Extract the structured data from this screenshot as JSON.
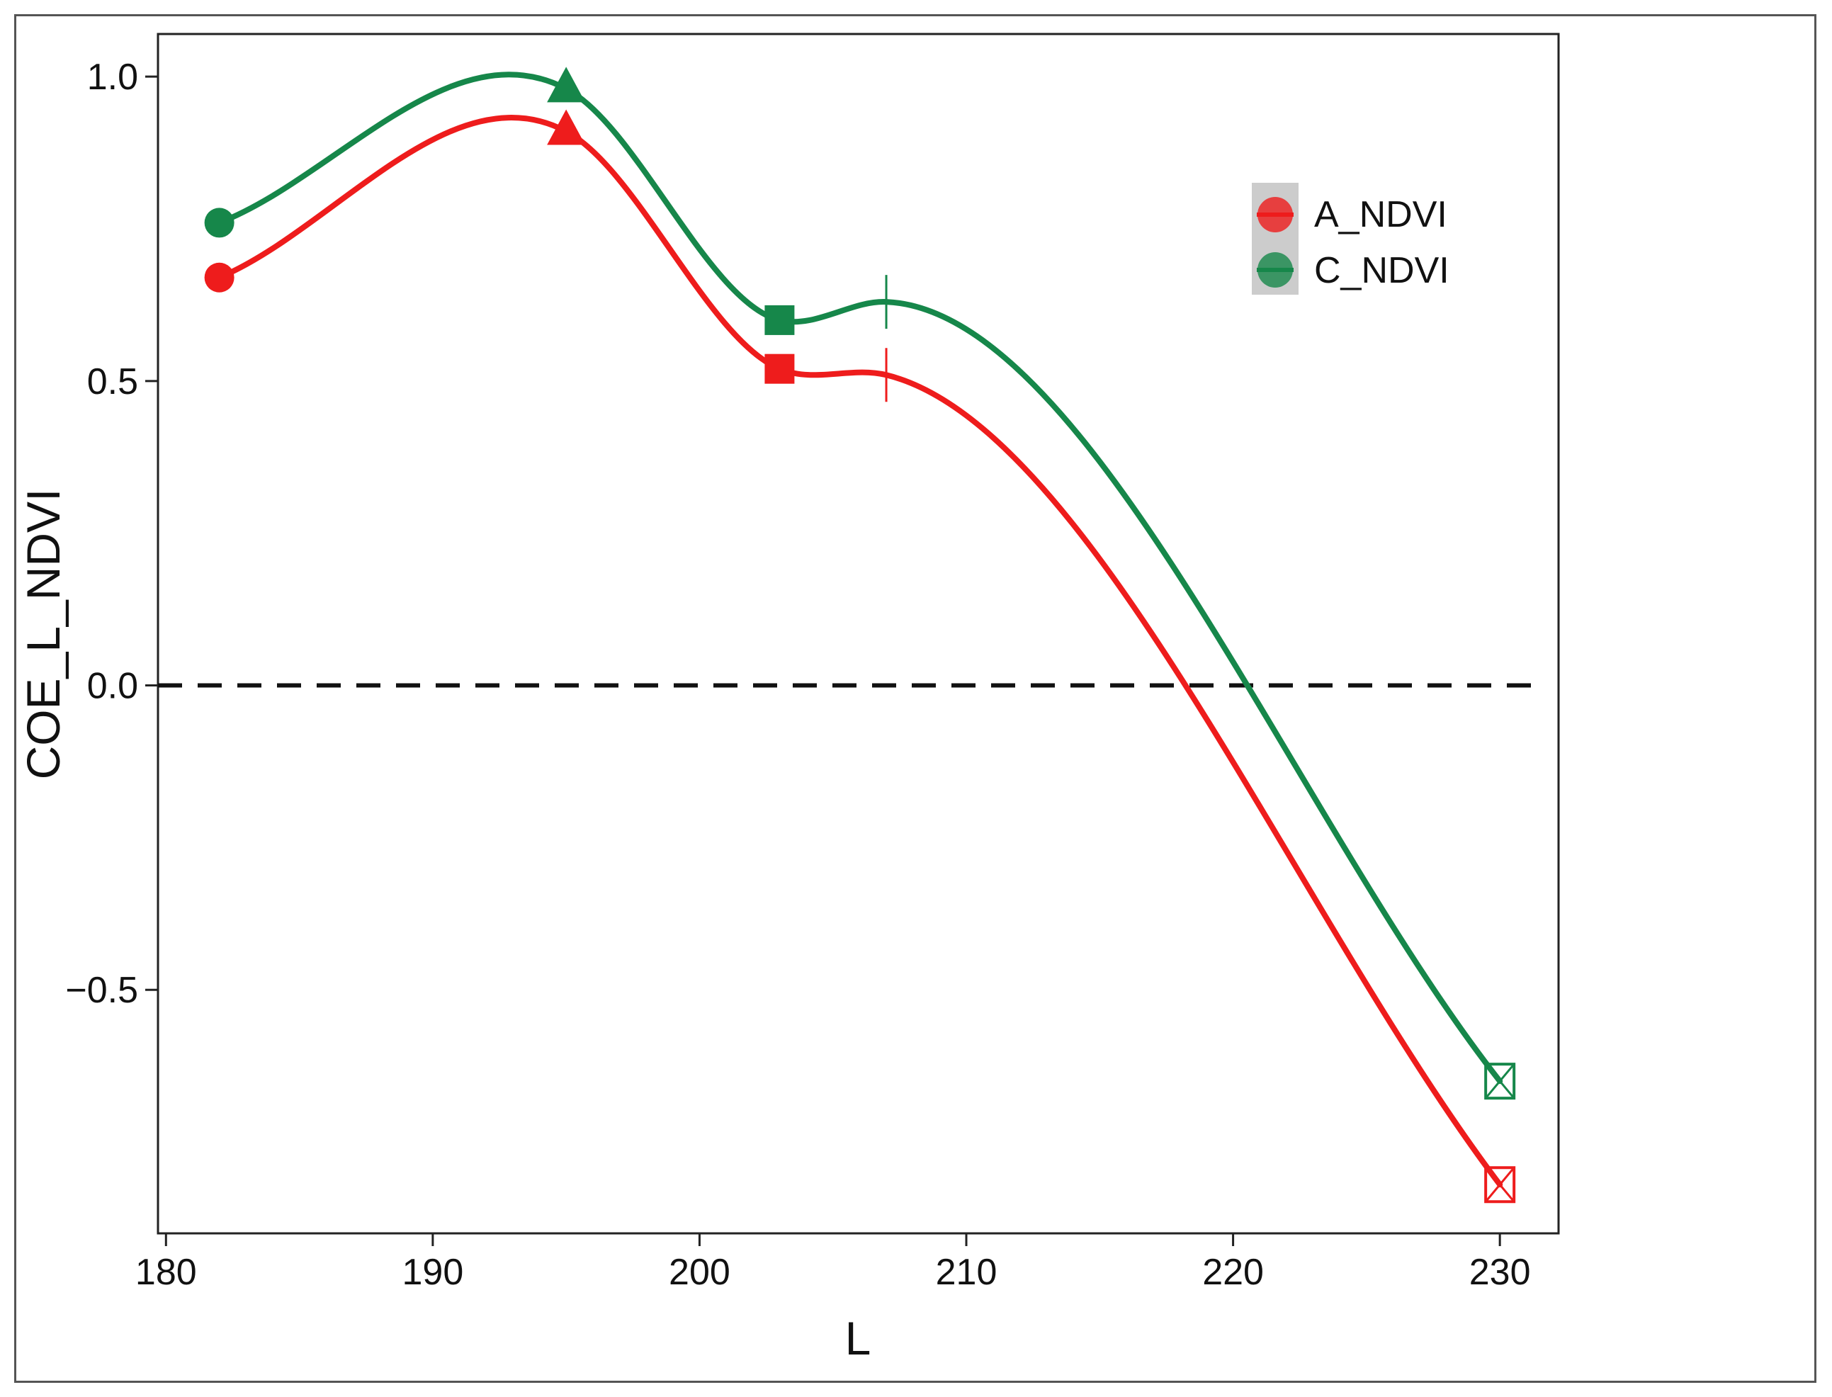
{
  "chart_data": {
    "type": "line",
    "title": "",
    "xlabel": "L",
    "ylabel": "COE_L_NDVI",
    "xlim": [
      179.7,
      232.2
    ],
    "ylim": [
      -0.9,
      1.07
    ],
    "xticks": [
      180,
      190,
      200,
      210,
      220,
      230
    ],
    "yticks": [
      -0.5,
      0.0,
      0.5,
      1.0
    ],
    "xtick_labels": [
      "180",
      "190",
      "200",
      "210",
      "220",
      "230"
    ],
    "ytick_labels": [
      "−0.5",
      "0.0",
      "0.5",
      "1.0"
    ],
    "reference_line": {
      "y": 0.0,
      "style": "dashed"
    },
    "legend_position": "top-right",
    "grid": false,
    "series": [
      {
        "name": "A_NDVI",
        "color": "#ee1c1c",
        "x": [
          182,
          195,
          203,
          207,
          230
        ],
        "y": [
          0.67,
          0.91,
          0.52,
          0.51,
          -0.82
        ],
        "markers": [
          "circle",
          "triangle",
          "square",
          "vline",
          "boxed-x"
        ]
      },
      {
        "name": "C_NDVI",
        "color": "#16874a",
        "x": [
          182,
          195,
          203,
          207,
          230
        ],
        "y": [
          0.76,
          0.98,
          0.6,
          0.63,
          -0.65
        ],
        "markers": [
          "circle",
          "triangle",
          "square",
          "vline",
          "boxed-x"
        ]
      }
    ]
  }
}
